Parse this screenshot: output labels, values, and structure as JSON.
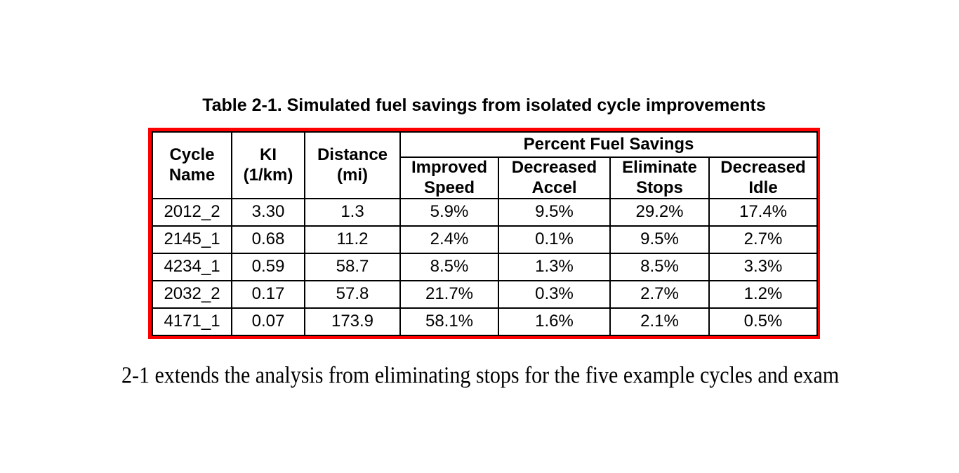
{
  "page": {
    "title": "Table 2-1. Simulated fuel savings from isolated cycle improvements",
    "body_text": "2-1 extends the analysis from eliminating stops for the five example cycles and exam"
  },
  "table": {
    "annotation_border_color": "#fe0000",
    "grid_color": "#000000",
    "columns": {
      "cycle_name": "Cycle\nName",
      "ki": "KI\n(1/km)",
      "distance": "Distance\n(mi)"
    },
    "group_header": "Percent Fuel Savings",
    "sub_headers": [
      "Improved\nSpeed",
      "Decreased\nAccel",
      "Eliminate\nStops",
      "Decreased\nIdle"
    ],
    "rows": [
      [
        "2012_2",
        "3.30",
        "1.3",
        "5.9%",
        "9.5%",
        "29.2%",
        "17.4%"
      ],
      [
        "2145_1",
        "0.68",
        "11.2",
        "2.4%",
        "0.1%",
        "9.5%",
        "2.7%"
      ],
      [
        "4234_1",
        "0.59",
        "58.7",
        "8.5%",
        "1.3%",
        "8.5%",
        "3.3%"
      ],
      [
        "2032_2",
        "0.17",
        "57.8",
        "21.7%",
        "0.3%",
        "2.7%",
        "1.2%"
      ],
      [
        "4171_1",
        "0.07",
        "173.9",
        "58.1%",
        "1.6%",
        "2.1%",
        "0.5%"
      ]
    ]
  }
}
